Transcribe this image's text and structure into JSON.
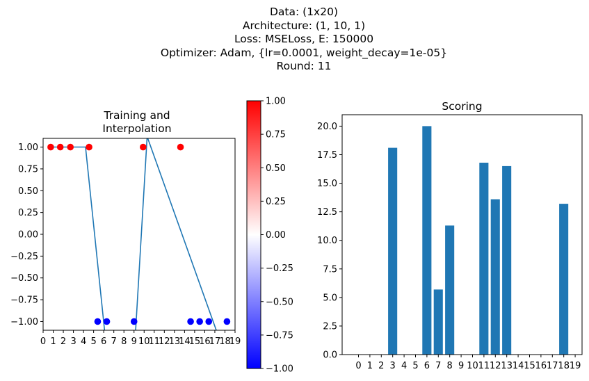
{
  "figure_title_lines": [
    "Data: (1x20)",
    "Architecture: (1, 10, 1)",
    "Loss: MSELoss, E: 150000",
    "Optimizer: Adam, {lr=0.0001, weight_decay=1e-05}",
    "Round: 11"
  ],
  "chart_data": [
    {
      "type": "scatter",
      "title": "Training and\n Interpolation",
      "xlabel": "",
      "ylabel": "",
      "xlim": [
        0,
        19
      ],
      "ylim": [
        -1.1,
        1.1
      ],
      "xticks": [
        "0",
        "1",
        "2",
        "3",
        "4",
        "5",
        "6",
        "7",
        "8",
        "9",
        "10",
        "11",
        "12",
        "13",
        "14",
        "15",
        "16",
        "17",
        "18",
        "19"
      ],
      "yticks": [
        "-1.00",
        "-0.75",
        "-0.50",
        "-0.25",
        "0.00",
        "0.25",
        "0.50",
        "0.75",
        "1.00"
      ],
      "points": [
        {
          "x": 0.75,
          "y": 1,
          "color": "#ff0000"
        },
        {
          "x": 1.7,
          "y": 1,
          "color": "#ff0000"
        },
        {
          "x": 2.7,
          "y": 1,
          "color": "#ff0000"
        },
        {
          "x": 4.55,
          "y": 1,
          "color": "#ff0000"
        },
        {
          "x": 5.4,
          "y": -1,
          "color": "#0000ff"
        },
        {
          "x": 6.3,
          "y": -1,
          "color": "#0000ff"
        },
        {
          "x": 9.0,
          "y": -1,
          "color": "#0000ff"
        },
        {
          "x": 9.9,
          "y": 1,
          "color": "#ff0000"
        },
        {
          "x": 13.6,
          "y": 1,
          "color": "#ff0000"
        },
        {
          "x": 14.6,
          "y": -1,
          "color": "#0000ff"
        },
        {
          "x": 15.5,
          "y": -1,
          "color": "#0000ff"
        },
        {
          "x": 16.4,
          "y": -1,
          "color": "#0000ff"
        },
        {
          "x": 18.2,
          "y": -1,
          "color": "#0000ff"
        }
      ],
      "line": {
        "color": "#1f77b4",
        "x": [
          0.75,
          4.2,
          6.1,
          9.15,
          10.3,
          17.2
        ],
        "y": [
          1.0,
          1.0,
          -1.12,
          -1.12,
          1.12,
          -1.12
        ]
      },
      "colorbar": {
        "range": [
          -1,
          1
        ],
        "colormap": "bwr",
        "ticks": [
          "-1.00",
          "-0.75",
          "-0.50",
          "-0.25",
          "0.00",
          "0.25",
          "0.50",
          "0.75",
          "1.00"
        ]
      }
    },
    {
      "type": "bar",
      "title": "Scoring",
      "xlabel": "",
      "ylabel": "",
      "categories": [
        "0",
        "1",
        "2",
        "3",
        "4",
        "5",
        "6",
        "7",
        "8",
        "9",
        "10",
        "11",
        "12",
        "13",
        "14",
        "15",
        "16",
        "17",
        "18",
        "19"
      ],
      "values": [
        0,
        0,
        0,
        18.1,
        0,
        0,
        20.0,
        5.7,
        11.3,
        0,
        0,
        16.8,
        13.6,
        16.5,
        0,
        0,
        0,
        0,
        13.2,
        0
      ],
      "ylim": [
        0,
        21
      ],
      "yticks": [
        "0.0",
        "2.5",
        "5.0",
        "7.5",
        "10.0",
        "12.5",
        "15.0",
        "17.5",
        "20.0"
      ],
      "color": "#1f77b4"
    }
  ]
}
